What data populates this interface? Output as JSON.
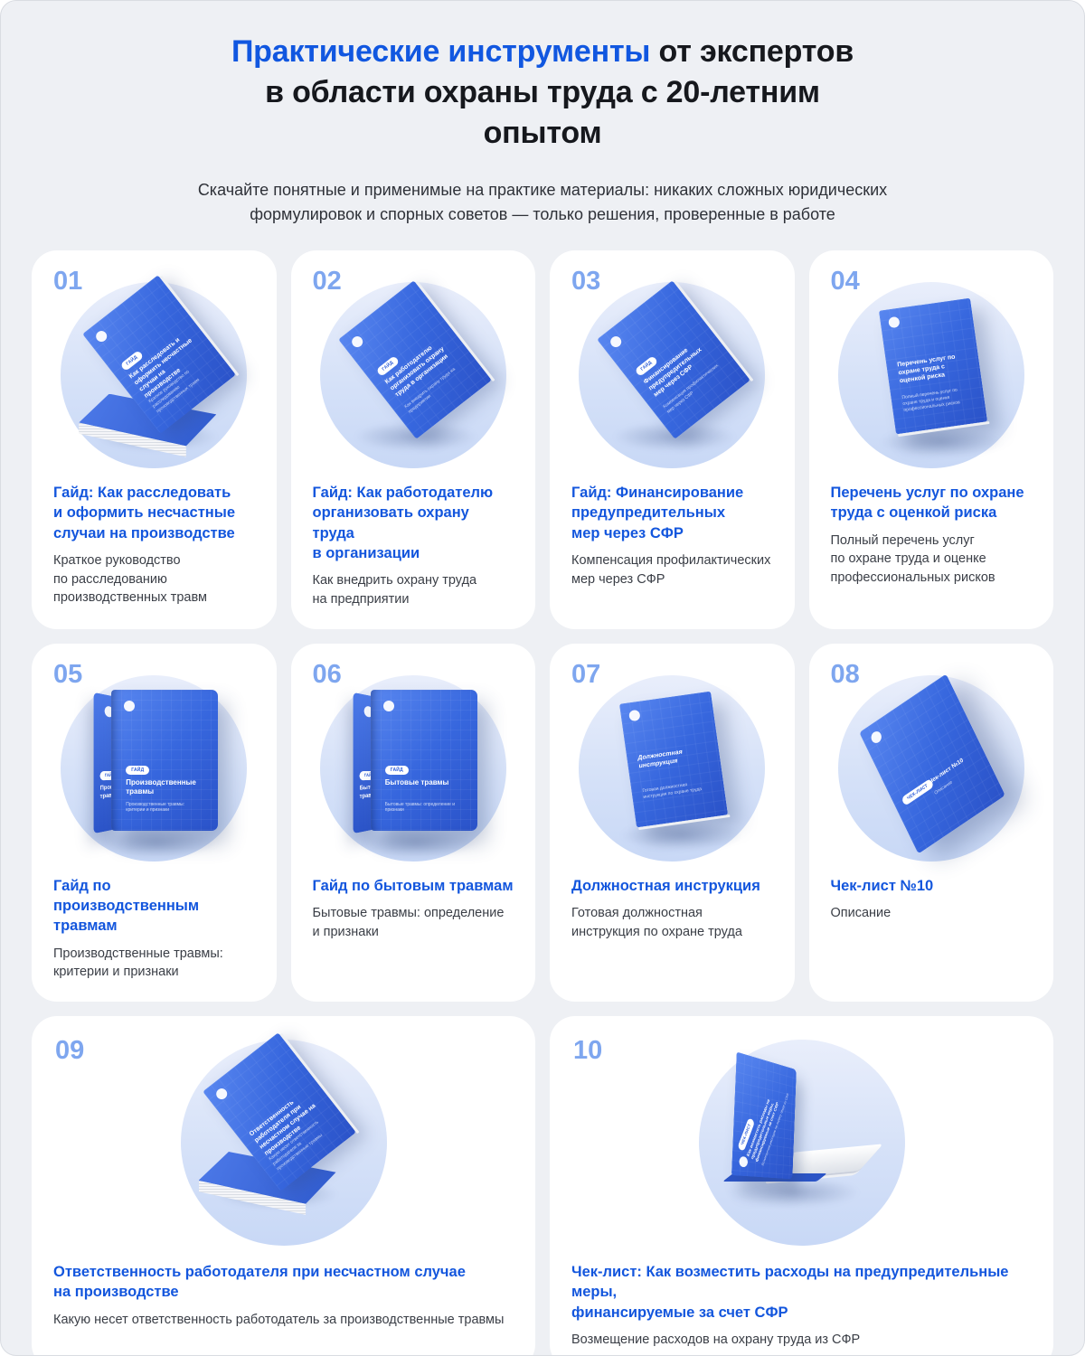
{
  "header": {
    "title_accent": "Практические инструменты",
    "title_rest": " от экспертов\nв области охраны труда с 20-летним\nопытом",
    "subtitle": "Скачайте понятные и применимые на практике материалы: никаких сложных юридических\nформулировок и спорных советов — только решения, проверенные в работе"
  },
  "colors": {
    "accent_blue": "#1157e0",
    "card_title_blue": "#1356dd",
    "number_blue": "#7ea6ef",
    "page_bg": "#eef0f4",
    "card_bg": "#ffffff",
    "book_blue": "#3767de",
    "circle_bg": "#d5e1f8"
  },
  "cards": [
    {
      "number": "01",
      "title": "Гайд: Как расследовать\nи оформить несчастные\nслучаи на производстве",
      "description": "Краткое руководство\nпо расследованию\nпроизводственных травм",
      "cover": {
        "badge": "ГАЙД",
        "title": "Как расследовать и оформить несчастные случаи на производстве",
        "sub": "Краткое руководство по расследованию производственных травм"
      }
    },
    {
      "number": "02",
      "title": "Гайд: Как работодателю\nорганизовать охрану труда\nв организации",
      "description": "Как внедрить охрану труда\nна предприятии",
      "cover": {
        "badge": "ГАЙД",
        "title": "Как работодателю организовать охрану труда в организации",
        "sub": "Как внедрить охрану труда на предприятии"
      }
    },
    {
      "number": "03",
      "title": "Гайд: Финансирование\nпредупредительных\nмер через СФР",
      "description": "Компенсация профилактических\nмер через СФР",
      "cover": {
        "badge": "ГАЙД",
        "title": "Финансирование предупредительных мер через СФР",
        "sub": "Компенсация профилактических мер через СФР"
      }
    },
    {
      "number": "04",
      "title": "Перечень услуг по охране\nтруда с оценкой риска",
      "description": "Полный перечень услуг\nпо охране труда и оценке\nпрофессиональных рисков",
      "cover": {
        "title": "Перечень услуг по охране труда с оценкой риска",
        "sub": "Полный перечень услуг по охране труда и оценке профессиональных рисков"
      }
    },
    {
      "number": "05",
      "title": "Гайд по производственным\nтравмам",
      "description": "Производственные травмы:\nкритерии и признаки",
      "cover": {
        "badge": "ГАЙД",
        "title": "Производственные травмы",
        "sub": "Производственные травмы: критерии и признаки"
      }
    },
    {
      "number": "06",
      "title": "Гайд по бытовым травмам",
      "description": "Бытовые травмы: определение\nи признаки",
      "cover": {
        "badge": "ГАЙД",
        "title": "Бытовые травмы",
        "sub": "Бытовые травмы: определение и признаки"
      }
    },
    {
      "number": "07",
      "title": "Должностная инструкция",
      "description": "Готовая должностная\nинструкция по охране труда",
      "cover": {
        "title": "Должностная инструкция",
        "sub": "Готовая должностная инструкция по охране труда"
      }
    },
    {
      "number": "08",
      "title": "Чек-лист №10",
      "description": "Описание",
      "cover": {
        "badge": "ЧЕК-ЛИСТ",
        "title": "Чек-лист №10",
        "sub": "Описание"
      }
    },
    {
      "number": "09",
      "title": "Ответственность работодателя при несчастном случае\nна производстве",
      "description": "Какую несет ответственность работодатель за производственные травмы",
      "cover": {
        "title": "Ответственность работодателя при несчастном случае на производстве",
        "sub": "Какую несет ответственность работодателя за производственные травмы"
      }
    },
    {
      "number": "10",
      "title": "Чек-лист: Как возместить расходы на предупредительные меры,\nфинансируемые за счет СФР",
      "description": "Возмещение расходов на охрану труда из СФР",
      "cover": {
        "badge": "ЧЕК-ЛИСТ",
        "title": "Как возместить расходы на предупредительные меры, финансируемые за счет СФР",
        "sub": "Возмещение расходов на охрану труда из СФР"
      }
    }
  ]
}
